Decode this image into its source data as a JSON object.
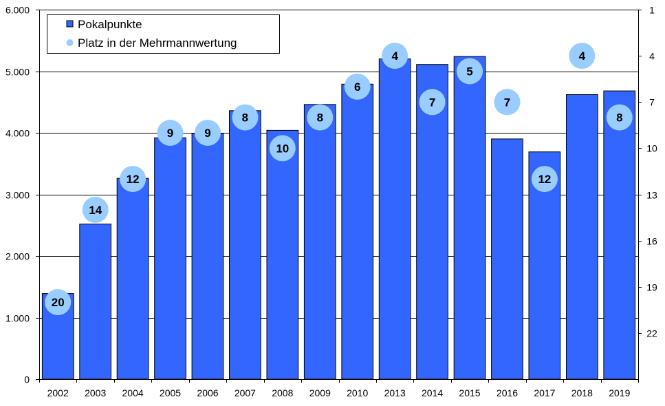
{
  "chart_data": {
    "type": "bar",
    "categories": [
      "2002",
      "2003",
      "2004",
      "2005",
      "2006",
      "2007",
      "2008",
      "2009",
      "2010",
      "2013",
      "2014",
      "2015",
      "2016",
      "2017",
      "2018",
      "2019"
    ],
    "series": [
      {
        "name": "Pokalpunkte",
        "axis": "left",
        "kind": "bar",
        "values": [
          1390,
          2520,
          3260,
          3920,
          3990,
          4360,
          4040,
          4460,
          4790,
          5200,
          5110,
          5240,
          3900,
          3690,
          4620,
          4680
        ]
      },
      {
        "name": "Platz in der Mehrmannwertung",
        "axis": "right",
        "kind": "marker",
        "values": [
          20,
          14,
          12,
          9,
          9,
          8,
          10,
          8,
          6,
          4,
          7,
          5,
          7,
          12,
          4,
          8
        ]
      }
    ],
    "left_axis": {
      "ylim": [
        0,
        6000
      ],
      "ticks": [
        0,
        1000,
        2000,
        3000,
        4000,
        5000,
        6000
      ],
      "tick_labels": [
        "0",
        "1.000",
        "2.000",
        "3.000",
        "4.000",
        "5.000",
        "6.000"
      ]
    },
    "right_axis": {
      "ylim": [
        1,
        25
      ],
      "reversed": true,
      "ticks": [
        1,
        4,
        7,
        10,
        13,
        16,
        19,
        22
      ],
      "tick_labels": [
        "1",
        "4",
        "7",
        "10",
        "13",
        "16",
        "19",
        "22"
      ]
    },
    "grid": "horizontal",
    "legend_placement": "top-left",
    "colors": {
      "bar_fill": "#3366ff",
      "bar_stroke": "#000000",
      "marker_fill": "#99ccff",
      "grid": "#000000"
    }
  }
}
